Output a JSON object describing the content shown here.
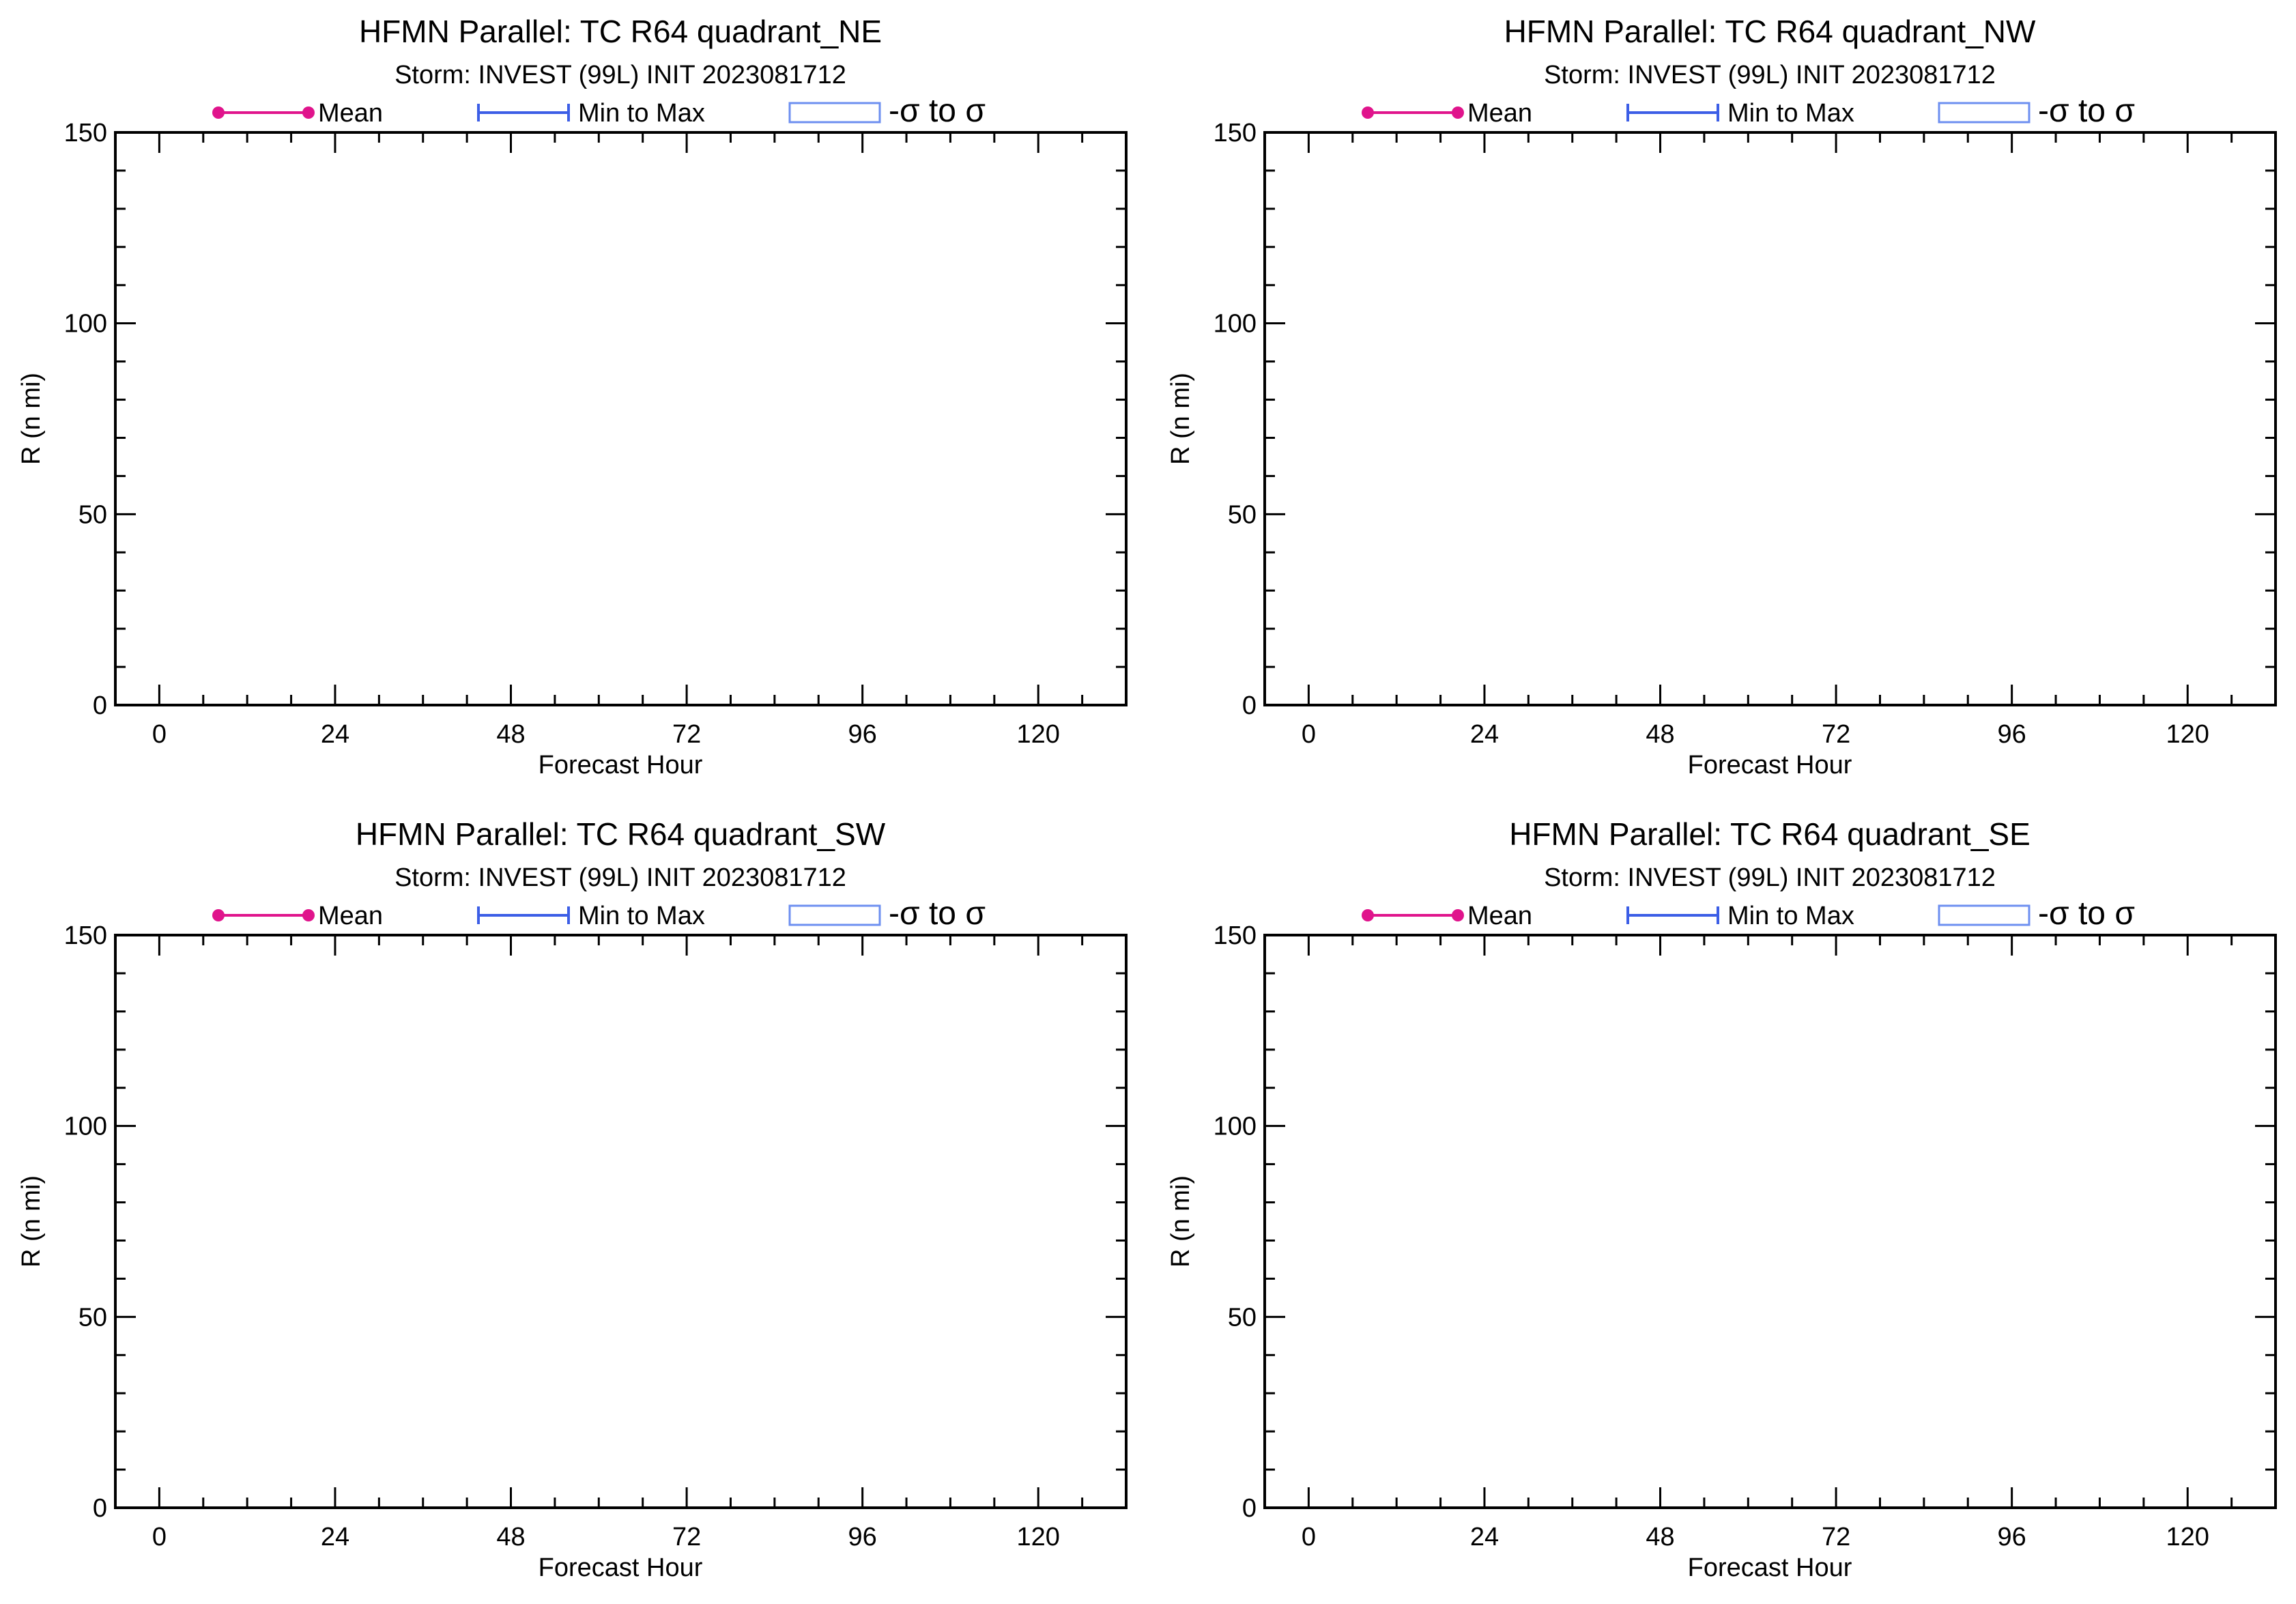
{
  "colors": {
    "mean": "#e0148c",
    "minmax": "#3c5ee6",
    "sigma": "#6d8ff0",
    "axis": "#000000",
    "background": "#ffffff"
  },
  "legend": {
    "mean": "Mean",
    "minmax": "Min to Max",
    "sigma": "-σ to σ"
  },
  "chart_data": [
    {
      "type": "line",
      "title": "HFMN Parallel: TC  R64 quadrant_NE",
      "subtitle": "Storm: INVEST (99L) INIT 2023081712",
      "xlabel": "Forecast Hour",
      "ylabel": "R (n mi)",
      "xlim": [
        -6,
        132
      ],
      "ylim": [
        0,
        150
      ],
      "xticks": [
        "0",
        "24",
        "48",
        "72",
        "96",
        "120"
      ],
      "yticks": [
        "0",
        "50",
        "100",
        "150"
      ],
      "legend_position": "top",
      "series": []
    },
    {
      "type": "line",
      "title": "HFMN Parallel: TC  R64 quadrant_NW",
      "subtitle": "Storm: INVEST (99L) INIT 2023081712",
      "xlabel": "Forecast Hour",
      "ylabel": "R (n mi)",
      "xlim": [
        -6,
        132
      ],
      "ylim": [
        0,
        150
      ],
      "xticks": [
        "0",
        "24",
        "48",
        "72",
        "96",
        "120"
      ],
      "yticks": [
        "0",
        "50",
        "100",
        "150"
      ],
      "legend_position": "top",
      "series": []
    },
    {
      "type": "line",
      "title": "HFMN Parallel: TC  R64 quadrant_SW",
      "subtitle": "Storm: INVEST (99L) INIT 2023081712",
      "xlabel": "Forecast Hour",
      "ylabel": "R (n mi)",
      "xlim": [
        -6,
        132
      ],
      "ylim": [
        0,
        150
      ],
      "xticks": [
        "0",
        "24",
        "48",
        "72",
        "96",
        "120"
      ],
      "yticks": [
        "0",
        "50",
        "100",
        "150"
      ],
      "legend_position": "top",
      "series": []
    },
    {
      "type": "line",
      "title": "HFMN Parallel: TC  R64 quadrant_SE",
      "subtitle": "Storm: INVEST (99L) INIT 2023081712",
      "xlabel": "Forecast Hour",
      "ylabel": "R (n mi)",
      "xlim": [
        -6,
        132
      ],
      "ylim": [
        0,
        150
      ],
      "xticks": [
        "0",
        "24",
        "48",
        "72",
        "96",
        "120"
      ],
      "yticks": [
        "0",
        "50",
        "100",
        "150"
      ],
      "legend_position": "top",
      "series": []
    }
  ]
}
